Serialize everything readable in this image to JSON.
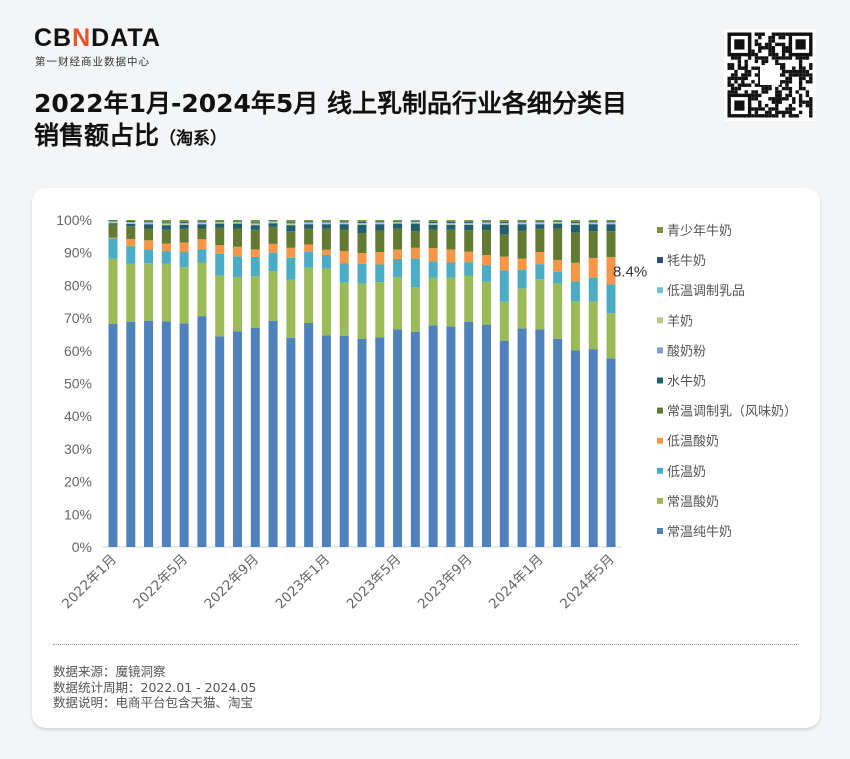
{
  "logo": {
    "prefix": "CB",
    "mark": "N",
    "suffix": "DATA",
    "subtitle": "第一财经商业数据中心"
  },
  "title": {
    "line1": "2022年1月-2024年5月 线上乳制品行业各细分类目",
    "line2": "销售额占比",
    "line2_suffix": "（淘系）"
  },
  "qr_icon": "qr-code",
  "footer": {
    "source": "数据来源：魔镜洞察",
    "period": "数据统计周期：2022.01 - 2024.05",
    "note": "数据说明：电商平台包含天猫、淘宝"
  },
  "chart_data": {
    "type": "bar",
    "stacked": true,
    "normalized_percent": true,
    "ylim": [
      0,
      100
    ],
    "yticks": [
      "0%",
      "10%",
      "20%",
      "30%",
      "40%",
      "50%",
      "60%",
      "70%",
      "80%",
      "90%",
      "100%"
    ],
    "grid": false,
    "legend_placement": "right",
    "categories": [
      "2022年1月",
      "2022年2月",
      "2022年3月",
      "2022年4月",
      "2022年5月",
      "2022年6月",
      "2022年7月",
      "2022年8月",
      "2022年9月",
      "2022年10月",
      "2022年11月",
      "2022年12月",
      "2023年1月",
      "2023年2月",
      "2023年3月",
      "2023年4月",
      "2023年5月",
      "2023年6月",
      "2023年7月",
      "2023年8月",
      "2023年9月",
      "2023年10月",
      "2023年11月",
      "2023年12月",
      "2024年1月",
      "2024年2月",
      "2024年3月",
      "2024年4月",
      "2024年5月"
    ],
    "xtick_labels": [
      "2022年1月",
      "2022年5月",
      "2022年9月",
      "2023年1月",
      "2023年5月",
      "2023年9月",
      "2024年1月",
      "2024年5月"
    ],
    "annotations": [
      {
        "series": "低温酸奶",
        "category": "2024年5月",
        "text": "8.4%"
      }
    ],
    "series": [
      {
        "name": "常温纯牛奶",
        "color": "#4f81bd",
        "values": [
          68.2,
          68.8,
          69.2,
          69.0,
          68.4,
          70.6,
          64.4,
          66.0,
          67.0,
          69.2,
          63.9,
          68.5,
          64.7,
          64.6,
          63.7,
          64.1,
          66.5,
          65.8,
          67.8,
          67.5,
          68.8,
          68.0,
          63.1,
          66.8,
          66.5,
          63.7,
          60.1,
          60.5,
          57.7
        ]
      },
      {
        "name": "常温酸奶",
        "color": "#9bbb59",
        "values": [
          20.0,
          17.8,
          17.6,
          17.6,
          17.2,
          16.4,
          18.6,
          16.5,
          15.8,
          15.2,
          17.8,
          16.9,
          20.4,
          16.2,
          16.9,
          16.9,
          16.0,
          13.6,
          14.5,
          14.9,
          14.1,
          13.1,
          11.9,
          12.3,
          15.4,
          16.9,
          15.0,
          14.6,
          13.8
        ]
      },
      {
        "name": "低温奶",
        "color": "#4bacc6",
        "values": [
          6.2,
          5.4,
          4.2,
          3.9,
          4.6,
          4.1,
          6.7,
          6.4,
          5.9,
          5.6,
          6.7,
          4.8,
          4.2,
          5.9,
          6.0,
          5.4,
          5.6,
          8.8,
          5.0,
          4.6,
          4.2,
          5.1,
          9.6,
          5.6,
          4.6,
          3.7,
          6.1,
          7.2,
          8.8
        ]
      },
      {
        "name": "低温酸奶",
        "color": "#f79646",
        "values": [
          0.2,
          2.2,
          2.8,
          2.3,
          2.9,
          3.0,
          2.6,
          2.9,
          2.3,
          2.7,
          3.1,
          2.3,
          1.6,
          3.8,
          3.3,
          3.8,
          2.9,
          3.3,
          4.1,
          4.0,
          3.2,
          3.1,
          4.2,
          3.5,
          3.7,
          3.5,
          5.7,
          6.1,
          8.4
        ]
      },
      {
        "name": "常温调制乳（风味奶）",
        "color": "#627a32",
        "values": [
          4.0,
          3.9,
          3.6,
          4.2,
          4.2,
          3.3,
          5.3,
          5.6,
          6.0,
          5.2,
          5.1,
          4.8,
          6.4,
          6.6,
          6.1,
          6.6,
          6.3,
          5.1,
          5.7,
          6.0,
          6.6,
          7.6,
          6.8,
          8.6,
          7.1,
          9.5,
          9.2,
          8.2,
          7.9
        ]
      },
      {
        "name": "水牛奶",
        "color": "#215e6e",
        "values": [
          0.4,
          0.7,
          1.3,
          1.4,
          1.2,
          1.3,
          1.3,
          1.5,
          1.4,
          1.1,
          1.8,
          1.4,
          1.4,
          1.6,
          2.5,
          1.9,
          1.6,
          2.3,
          1.4,
          1.5,
          1.6,
          1.8,
          2.9,
          1.9,
          1.4,
          1.6,
          2.4,
          2.1,
          2.1
        ]
      },
      {
        "name": "酸奶粉",
        "color": "#7f9fd0",
        "values": [
          0.1,
          0.1,
          0.1,
          0.1,
          0.1,
          0.1,
          0.1,
          0.1,
          0.1,
          0.1,
          0.1,
          0.1,
          0.1,
          0.1,
          0.1,
          0.1,
          0.1,
          0.1,
          0.1,
          0.1,
          0.1,
          0.1,
          0.1,
          0.1,
          0.1,
          0.1,
          0.1,
          0.1,
          0.1
        ]
      },
      {
        "name": "羊奶",
        "color": "#b5cf8a",
        "values": [
          0.3,
          0.3,
          0.3,
          0.3,
          0.3,
          0.3,
          0.3,
          0.3,
          0.3,
          0.3,
          0.3,
          0.3,
          0.3,
          0.3,
          0.3,
          0.3,
          0.3,
          0.3,
          0.3,
          0.3,
          0.3,
          0.3,
          0.3,
          0.3,
          0.3,
          0.3,
          0.3,
          0.3,
          0.3
        ]
      },
      {
        "name": "低温调制乳品",
        "color": "#72c2d6",
        "values": [
          0.2,
          0.2,
          0.2,
          0.2,
          0.2,
          0.2,
          0.2,
          0.2,
          0.2,
          0.2,
          0.2,
          0.2,
          0.2,
          0.2,
          0.2,
          0.2,
          0.2,
          0.2,
          0.2,
          0.2,
          0.2,
          0.2,
          0.2,
          0.2,
          0.2,
          0.2,
          0.2,
          0.2,
          0.2
        ]
      },
      {
        "name": "牦牛奶",
        "color": "#2c4d75",
        "values": [
          0.3,
          0.3,
          0.3,
          0.3,
          0.3,
          0.3,
          0.3,
          0.3,
          0.3,
          0.3,
          0.3,
          0.3,
          0.3,
          0.3,
          0.3,
          0.3,
          0.3,
          0.3,
          0.3,
          0.3,
          0.3,
          0.3,
          0.3,
          0.3,
          0.3,
          0.3,
          0.3,
          0.3,
          0.3
        ]
      },
      {
        "name": "青少年牛奶",
        "color": "#77933c",
        "values": [
          0.1,
          0.3,
          0.4,
          0.7,
          0.6,
          0.4,
          0.2,
          0.2,
          0.7,
          0.1,
          0.7,
          0.4,
          0.4,
          0.4,
          0.6,
          0.4,
          0.2,
          0.2,
          0.6,
          0.6,
          0.6,
          0.4,
          0.6,
          0.4,
          0.4,
          0.2,
          0.6,
          0.4,
          0.4
        ]
      }
    ]
  }
}
